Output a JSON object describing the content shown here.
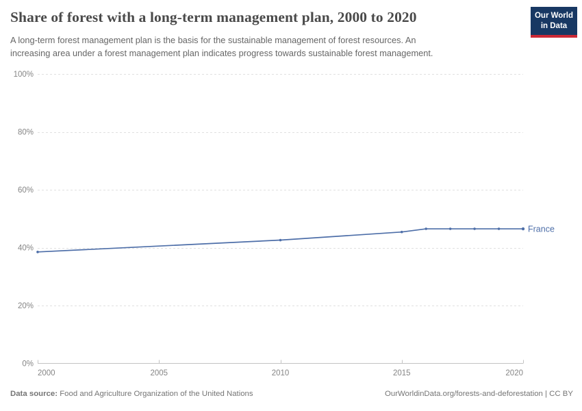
{
  "header": {
    "title": "Share of forest with a long-term management plan, 2000 to 2020",
    "subtitle_lines": [
      "A long-term forest management plan is the basis for the sustainable management of forest resources. An",
      "increasing area under a forest management plan indicates progress towards sustainable forest management."
    ],
    "logo": {
      "line1": "Our World",
      "line2": "in Data"
    }
  },
  "chart_data": {
    "type": "line",
    "title": "Share of forest with a long-term management plan, 2000 to 2020",
    "series": [
      {
        "name": "France",
        "color": "#4d6ea8",
        "x": [
          2000,
          2010,
          2015,
          2016,
          2017,
          2018,
          2019,
          2020
        ],
        "values": [
          38.5,
          42.6,
          45.4,
          46.5,
          46.5,
          46.5,
          46.5,
          46.5
        ]
      }
    ],
    "xlabel": "",
    "ylabel": "",
    "xlim": [
      2000,
      2020
    ],
    "ylim": [
      0,
      100
    ],
    "xticks": [
      2000,
      2005,
      2010,
      2015,
      2020
    ],
    "yticks": [
      0,
      20,
      40,
      60,
      80,
      100
    ],
    "ytick_suffix": "%",
    "grid": "horizontal-dashed",
    "legend": "end-of-line-label"
  },
  "footer": {
    "source_label": "Data source:",
    "source_text": "Food and Agriculture Organization of the United Nations",
    "credit": "OurWorldinData.org/forests-and-deforestation | CC BY"
  },
  "colors": {
    "line": "#4d6ea8",
    "grid": "#e0e0e0",
    "axis": "#c2c2c2",
    "tick_label": "#858585",
    "logo_bg": "#183863",
    "logo_bar": "#cc2936"
  }
}
